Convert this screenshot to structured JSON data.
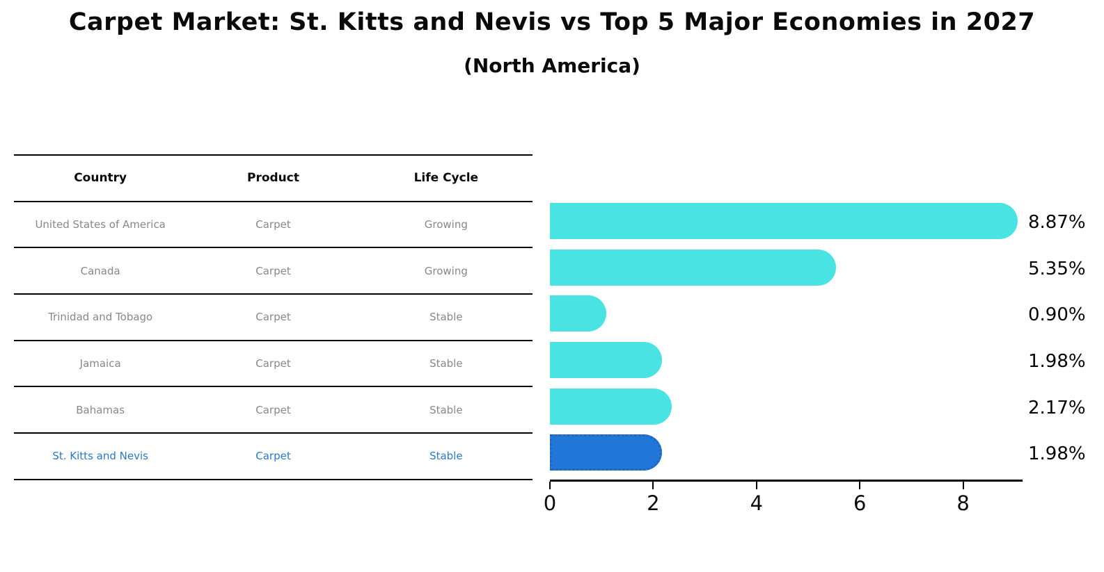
{
  "title": "Carpet Market: St. Kitts and Nevis vs Top 5 Major Economies in 2027",
  "subtitle": "(North America)",
  "table": {
    "headers": [
      "Country",
      "Product",
      "Life Cycle"
    ],
    "rows": [
      {
        "country": "United States of America",
        "product": "Carpet",
        "life_cycle": "Growing",
        "highlight": false
      },
      {
        "country": "Canada",
        "product": "Carpet",
        "life_cycle": "Growing",
        "highlight": false
      },
      {
        "country": "Trinidad and Tobago",
        "product": "Carpet",
        "life_cycle": "Stable",
        "highlight": false
      },
      {
        "country": "Jamaica",
        "product": "Carpet",
        "life_cycle": "Stable",
        "highlight": false
      },
      {
        "country": "Bahamas",
        "product": "Carpet",
        "life_cycle": "Stable",
        "highlight": false
      },
      {
        "country": "St. Kitts and Nevis",
        "product": "Carpet",
        "life_cycle": "Stable",
        "highlight": true
      }
    ]
  },
  "chart_data": {
    "type": "bar",
    "orientation": "horizontal",
    "title": "Carpet Market: St. Kitts and Nevis vs Top 5 Major Economies in 2027 (North America)",
    "categories": [
      "United States of America",
      "Canada",
      "Trinidad and Tobago",
      "Jamaica",
      "Bahamas",
      "St. Kitts and Nevis"
    ],
    "values": [
      8.87,
      5.35,
      0.9,
      1.98,
      2.17,
      1.98
    ],
    "value_labels": [
      "8.87%",
      "5.35%",
      "0.90%",
      "1.98%",
      "2.17%",
      "1.98%"
    ],
    "x_ticks": [
      0,
      2,
      4,
      6,
      8
    ],
    "xlim": [
      0,
      9.15
    ],
    "xlabel": "",
    "ylabel": "",
    "grid": false,
    "legend": false,
    "highlight_index": 5
  },
  "colors": {
    "bar": "#49E3E3",
    "highlight_bar": "#2176D7",
    "highlight_border": "#1B65C4",
    "highlight_text": "#2979C9",
    "body_text": "#888888",
    "line": "#000000"
  }
}
